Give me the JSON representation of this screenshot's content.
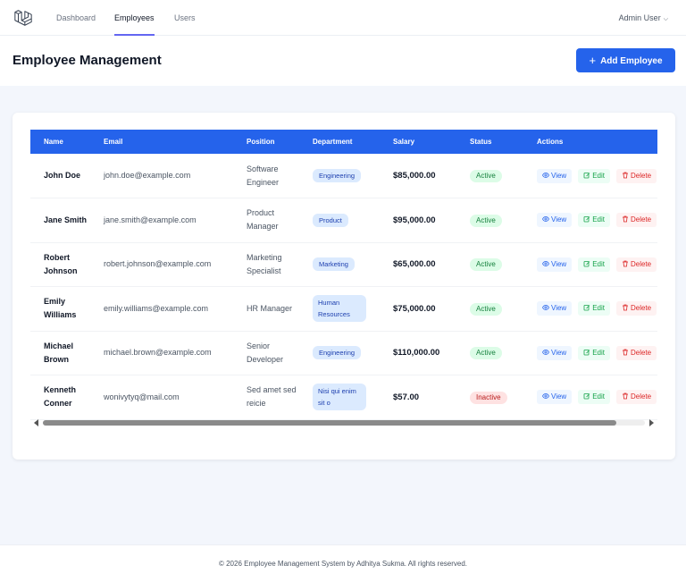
{
  "nav": {
    "logo_icon": "laravel-logo-icon",
    "links": [
      {
        "label": "Dashboard",
        "active": false
      },
      {
        "label": "Employees",
        "active": true
      },
      {
        "label": "Users",
        "active": false
      }
    ],
    "user": "Admin User"
  },
  "header": {
    "title": "Employee Management",
    "add_label": "Add Employee"
  },
  "table": {
    "columns": [
      "Name",
      "Email",
      "Position",
      "Department",
      "Salary",
      "Status",
      "Actions"
    ],
    "actions": {
      "view": "View",
      "edit": "Edit",
      "delete": "Delete"
    },
    "rows": [
      {
        "name": "John Doe",
        "email": "john.doe@example.com",
        "position": "Software Engineer",
        "department": "Engineering",
        "salary": "$85,000.00",
        "status": "Active"
      },
      {
        "name": "Jane Smith",
        "email": "jane.smith@example.com",
        "position": "Product Manager",
        "department": "Product",
        "salary": "$95,000.00",
        "status": "Active"
      },
      {
        "name": "Robert Johnson",
        "email": "robert.johnson@example.com",
        "position": "Marketing Specialist",
        "department": "Marketing",
        "salary": "$65,000.00",
        "status": "Active"
      },
      {
        "name": "Emily Williams",
        "email": "emily.williams@example.com",
        "position": "HR Manager",
        "department": "Human Resources",
        "salary": "$75,000.00",
        "status": "Active"
      },
      {
        "name": "Michael Brown",
        "email": "michael.brown@example.com",
        "position": "Senior Developer",
        "department": "Engineering",
        "salary": "$110,000.00",
        "status": "Active"
      },
      {
        "name": "Kenneth Conner",
        "email": "wonivytyq@mail.com",
        "position": "Sed amet sed reicie",
        "department": "Nisi qui enim sit o",
        "salary": "$57.00",
        "status": "Inactive"
      }
    ]
  },
  "footer": {
    "text": "© 2026 Employee Management System by Adhitya Sukma. All rights reserved."
  },
  "colors": {
    "primary": "#2563eb",
    "active_status": "#15803d",
    "inactive_status": "#b91c1c",
    "page_bg": "#f3f6fc"
  }
}
